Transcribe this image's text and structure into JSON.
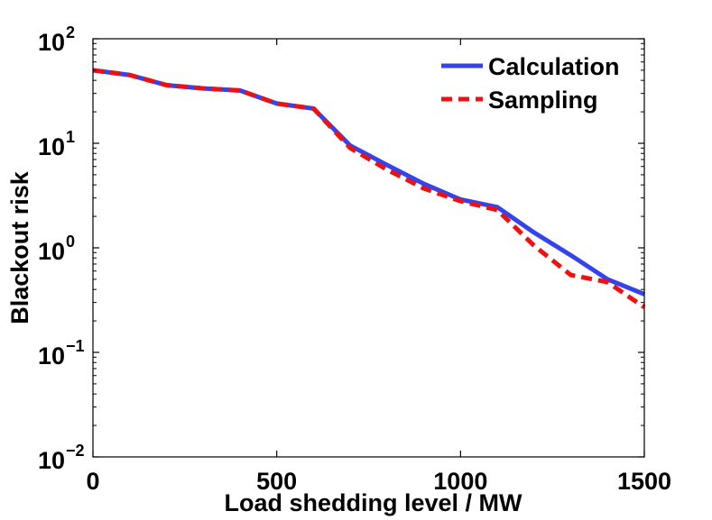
{
  "chart_data": {
    "type": "line",
    "title": "",
    "xlabel": "Load shedding level / MW",
    "ylabel": "Blackout risk",
    "xlim": [
      0,
      1500
    ],
    "ylim": [
      0.01,
      100
    ],
    "yscale": "log",
    "grid": false,
    "legend_position": "top-right",
    "x_ticks": [
      {
        "value": 0,
        "label": "0"
      },
      {
        "value": 500,
        "label": "500"
      },
      {
        "value": 1000,
        "label": "1000"
      },
      {
        "value": 1500,
        "label": "1500"
      }
    ],
    "y_ticks": [
      {
        "value": 0.01,
        "base": "10",
        "exp": "−2"
      },
      {
        "value": 0.1,
        "base": "10",
        "exp": "−1"
      },
      {
        "value": 1,
        "base": "10",
        "exp": "0"
      },
      {
        "value": 10,
        "base": "10",
        "exp": "1"
      },
      {
        "value": 100,
        "base": "10",
        "exp": "2"
      }
    ],
    "series": [
      {
        "name": "Calculation",
        "color": "#3344ee",
        "dash": "solid",
        "x": [
          0,
          100,
          200,
          300,
          400,
          500,
          600,
          700,
          800,
          900,
          1000,
          1100,
          1200,
          1300,
          1400,
          1500
        ],
        "y": [
          50,
          45,
          36,
          33.5,
          32,
          24,
          21.5,
          9.5,
          6.2,
          4.1,
          2.9,
          2.45,
          1.4,
          0.85,
          0.5,
          0.36
        ]
      },
      {
        "name": "Sampling",
        "color": "#ee1111",
        "dash": "dashed",
        "x": [
          0,
          100,
          200,
          300,
          400,
          500,
          600,
          700,
          800,
          900,
          1000,
          1100,
          1200,
          1300,
          1400,
          1500
        ],
        "y": [
          50,
          45,
          36,
          33.5,
          32,
          24,
          21.5,
          9.0,
          5.6,
          3.7,
          2.8,
          2.3,
          1.05,
          0.55,
          0.47,
          0.27
        ]
      }
    ]
  }
}
